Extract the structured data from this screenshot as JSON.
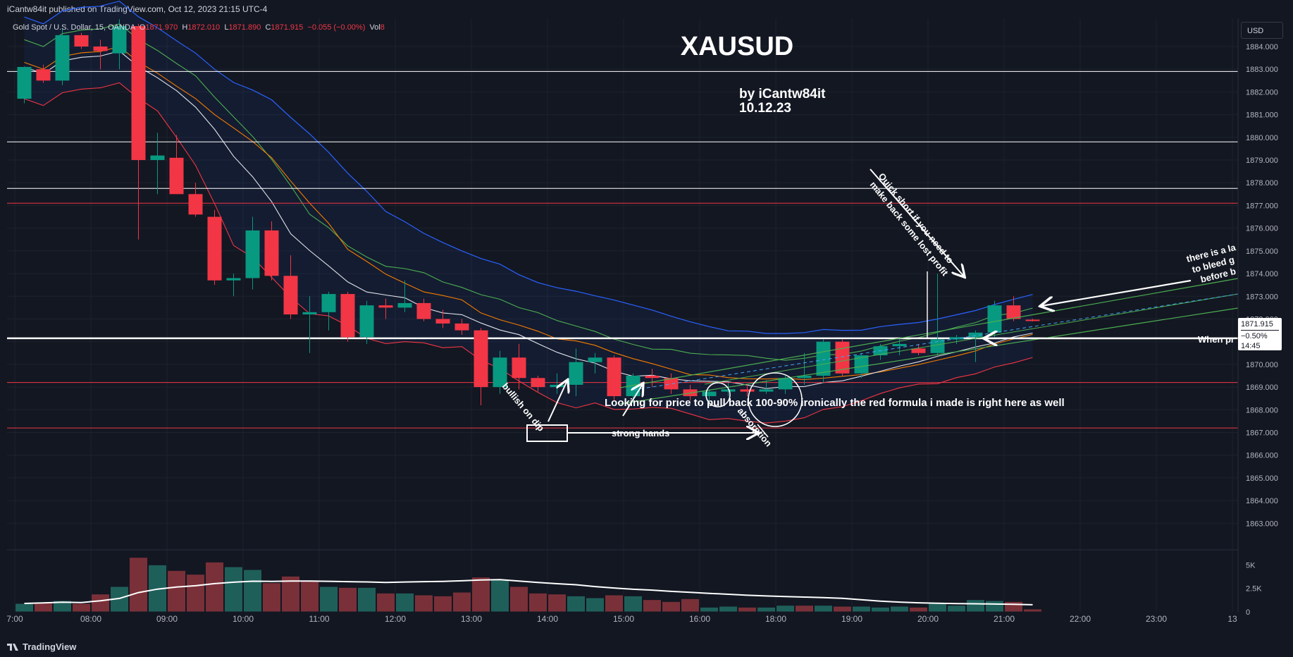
{
  "header": {
    "publish_line": "iCantw84it published on TradingView.com, Oct 12, 2023 21:15 UTC-4"
  },
  "legend": {
    "symbol": "Gold Spot / U.S. Dollar, 15, OANDA",
    "o_label": "O",
    "o_value": "1871.970",
    "h_label": "H",
    "h_value": "1872.010",
    "l_label": "L",
    "l_value": "1871.890",
    "c_label": "C",
    "c_value": "1871.915",
    "change": "−0.055 (−0.00%)",
    "vol_label": "Vol",
    "vol_value": "8"
  },
  "currency_button": "USD",
  "price_tag": {
    "price": "1871.915",
    "pct": "−0.50%",
    "countdown": "14:45"
  },
  "footer": {
    "brand": "TradingView"
  },
  "colors": {
    "background": "#131722",
    "bull": "#089981",
    "bear": "#f23645",
    "bull_volume": "#1f5f5a",
    "bear_volume": "#7a3038",
    "grid": "#1e222d"
  },
  "chart_data": {
    "type": "candlestick",
    "title": "XAUSUD",
    "subtitle": "by iCantw84it",
    "date_text": "10.12.23",
    "y_axis_ticks": [
      "1884.000",
      "1883.000",
      "1882.000",
      "1881.000",
      "1880.000",
      "1879.000",
      "1878.000",
      "1877.000",
      "1876.000",
      "1875.000",
      "1874.000",
      "1873.000",
      "1872.000",
      "1871.000",
      "1870.000",
      "1869.000",
      "1868.000",
      "1867.000",
      "1866.000",
      "1865.000",
      "1864.000",
      "1863.000"
    ],
    "ylim": [
      1862.0,
      1884.3
    ],
    "x_ticks": [
      {
        "label": "7:00",
        "t": -1.0
      },
      {
        "label": "08:00",
        "t": 3.0
      },
      {
        "label": "09:00",
        "t": 7.0
      },
      {
        "label": "10:00",
        "t": 11.0
      },
      {
        "label": "11:00",
        "t": 15.0
      },
      {
        "label": "12:00",
        "t": 19.0
      },
      {
        "label": "13:00",
        "t": 23.0
      },
      {
        "label": "14:00",
        "t": 27.0
      },
      {
        "label": "15:00",
        "t": 31.0
      },
      {
        "label": "16:00",
        "t": 35.0
      },
      {
        "label": "18:00",
        "t": 39.0
      },
      {
        "label": "19:00",
        "t": 43.0
      },
      {
        "label": "20:00",
        "t": 47.0
      },
      {
        "label": "21:00",
        "t": 51.0
      },
      {
        "label": "22:00",
        "t": 55.0
      },
      {
        "label": "23:00",
        "t": 59.0
      },
      {
        "label": "13",
        "t": 63.0
      }
    ],
    "candles": [
      {
        "t": -0.5,
        "o": 1881.7,
        "h": 1883.0,
        "l": 1881.5,
        "c": 1883.1
      },
      {
        "t": 0.5,
        "o": 1883.0,
        "h": 1883.2,
        "l": 1882.4,
        "c": 1882.5
      },
      {
        "t": 1.5,
        "o": 1882.5,
        "h": 1884.8,
        "l": 1882.3,
        "c": 1884.5
      },
      {
        "t": 2.5,
        "o": 1884.5,
        "h": 1884.6,
        "l": 1883.9,
        "c": 1884.0
      },
      {
        "t": 3.5,
        "o": 1884.0,
        "h": 1884.3,
        "l": 1883.0,
        "c": 1883.8
      },
      {
        "t": 4.5,
        "o": 1883.7,
        "h": 1885.2,
        "l": 1883.0,
        "c": 1884.9
      },
      {
        "t": 5.5,
        "o": 1884.9,
        "h": 1885.0,
        "l": 1875.5,
        "c": 1879.0
      },
      {
        "t": 6.5,
        "o": 1879.0,
        "h": 1880.2,
        "l": 1877.5,
        "c": 1879.2
      },
      {
        "t": 7.5,
        "o": 1879.1,
        "h": 1880.1,
        "l": 1877.5,
        "c": 1877.5
      },
      {
        "t": 8.5,
        "o": 1877.5,
        "h": 1878.0,
        "l": 1876.5,
        "c": 1876.6
      },
      {
        "t": 9.5,
        "o": 1876.5,
        "h": 1876.8,
        "l": 1873.5,
        "c": 1873.7
      },
      {
        "t": 10.5,
        "o": 1873.7,
        "h": 1874.0,
        "l": 1873.0,
        "c": 1873.8
      },
      {
        "t": 11.5,
        "o": 1873.8,
        "h": 1876.5,
        "l": 1873.3,
        "c": 1875.9
      },
      {
        "t": 12.5,
        "o": 1875.9,
        "h": 1876.3,
        "l": 1873.7,
        "c": 1873.9
      },
      {
        "t": 13.5,
        "o": 1873.9,
        "h": 1874.8,
        "l": 1872.0,
        "c": 1872.2
      },
      {
        "t": 14.5,
        "o": 1872.2,
        "h": 1873.0,
        "l": 1870.5,
        "c": 1872.3
      },
      {
        "t": 15.5,
        "o": 1872.3,
        "h": 1873.2,
        "l": 1871.5,
        "c": 1873.1
      },
      {
        "t": 16.5,
        "o": 1873.1,
        "h": 1873.2,
        "l": 1871.0,
        "c": 1871.2
      },
      {
        "t": 17.5,
        "o": 1871.2,
        "h": 1872.8,
        "l": 1870.9,
        "c": 1872.6
      },
      {
        "t": 18.5,
        "o": 1872.6,
        "h": 1872.9,
        "l": 1872.0,
        "c": 1872.5
      },
      {
        "t": 19.5,
        "o": 1872.5,
        "h": 1873.7,
        "l": 1872.3,
        "c": 1872.7
      },
      {
        "t": 20.5,
        "o": 1872.7,
        "h": 1872.9,
        "l": 1871.9,
        "c": 1872.0
      },
      {
        "t": 21.5,
        "o": 1872.0,
        "h": 1872.4,
        "l": 1871.6,
        "c": 1871.8
      },
      {
        "t": 22.5,
        "o": 1871.8,
        "h": 1872.0,
        "l": 1871.3,
        "c": 1871.5
      },
      {
        "t": 23.5,
        "o": 1871.5,
        "h": 1871.6,
        "l": 1868.2,
        "c": 1869.0
      },
      {
        "t": 24.5,
        "o": 1869.0,
        "h": 1870.6,
        "l": 1868.7,
        "c": 1870.3
      },
      {
        "t": 25.5,
        "o": 1870.3,
        "h": 1870.9,
        "l": 1868.9,
        "c": 1869.4
      },
      {
        "t": 26.5,
        "o": 1869.4,
        "h": 1869.5,
        "l": 1868.8,
        "c": 1869.0
      },
      {
        "t": 27.5,
        "o": 1869.0,
        "h": 1869.6,
        "l": 1868.7,
        "c": 1869.1
      },
      {
        "t": 28.5,
        "o": 1869.1,
        "h": 1870.7,
        "l": 1868.6,
        "c": 1870.1
      },
      {
        "t": 29.5,
        "o": 1870.1,
        "h": 1870.5,
        "l": 1869.6,
        "c": 1870.3
      },
      {
        "t": 30.5,
        "o": 1870.3,
        "h": 1870.4,
        "l": 1868.4,
        "c": 1868.6
      },
      {
        "t": 31.5,
        "o": 1868.6,
        "h": 1869.6,
        "l": 1868.3,
        "c": 1869.5
      },
      {
        "t": 32.5,
        "o": 1869.5,
        "h": 1869.8,
        "l": 1869.0,
        "c": 1869.4
      },
      {
        "t": 33.5,
        "o": 1869.4,
        "h": 1869.6,
        "l": 1868.7,
        "c": 1868.9
      },
      {
        "t": 34.5,
        "o": 1868.9,
        "h": 1869.1,
        "l": 1868.4,
        "c": 1868.6
      },
      {
        "t": 35.5,
        "o": 1868.6,
        "h": 1868.9,
        "l": 1868.3,
        "c": 1868.8
      },
      {
        "t": 36.5,
        "o": 1868.8,
        "h": 1869.2,
        "l": 1868.6,
        "c": 1868.9
      },
      {
        "t": 37.5,
        "o": 1868.9,
        "h": 1869.1,
        "l": 1868.6,
        "c": 1868.8
      },
      {
        "t": 38.5,
        "o": 1868.8,
        "h": 1869.3,
        "l": 1868.7,
        "c": 1868.9
      },
      {
        "t": 39.5,
        "o": 1868.9,
        "h": 1869.5,
        "l": 1868.7,
        "c": 1869.4
      },
      {
        "t": 40.5,
        "o": 1869.4,
        "h": 1870.5,
        "l": 1869.1,
        "c": 1869.5
      },
      {
        "t": 41.5,
        "o": 1869.5,
        "h": 1871.1,
        "l": 1869.2,
        "c": 1871.0
      },
      {
        "t": 42.5,
        "o": 1871.0,
        "h": 1871.1,
        "l": 1869.5,
        "c": 1869.6
      },
      {
        "t": 43.5,
        "o": 1869.6,
        "h": 1870.5,
        "l": 1869.4,
        "c": 1870.4
      },
      {
        "t": 44.5,
        "o": 1870.4,
        "h": 1870.9,
        "l": 1870.2,
        "c": 1870.8
      },
      {
        "t": 45.5,
        "o": 1870.8,
        "h": 1871.1,
        "l": 1870.4,
        "c": 1870.9
      },
      {
        "t": 46.5,
        "o": 1870.7,
        "h": 1870.9,
        "l": 1870.4,
        "c": 1870.5
      },
      {
        "t": 47.5,
        "o": 1870.5,
        "h": 1874.0,
        "l": 1870.4,
        "c": 1871.1
      },
      {
        "t": 48.5,
        "o": 1871.1,
        "h": 1871.3,
        "l": 1870.9,
        "c": 1871.2
      },
      {
        "t": 49.5,
        "o": 1871.2,
        "h": 1871.5,
        "l": 1870.1,
        "c": 1871.4
      },
      {
        "t": 50.5,
        "o": 1871.4,
        "h": 1872.8,
        "l": 1871.1,
        "c": 1872.6
      },
      {
        "t": 51.5,
        "o": 1872.6,
        "h": 1873.0,
        "l": 1871.9,
        "c": 1872.0
      },
      {
        "t": 52.5,
        "o": 1871.97,
        "h": 1872.01,
        "l": 1871.89,
        "c": 1871.915
      }
    ],
    "volume_ticks": [
      "5K",
      "2.5K",
      "0"
    ],
    "volume_max": 6000,
    "volume": [
      {
        "t": -0.5,
        "v": 900,
        "up": true
      },
      {
        "t": 0.5,
        "v": 1000,
        "up": false
      },
      {
        "t": 1.5,
        "v": 1200,
        "up": true
      },
      {
        "t": 2.5,
        "v": 900,
        "up": false
      },
      {
        "t": 3.5,
        "v": 1900,
        "up": false
      },
      {
        "t": 4.5,
        "v": 2700,
        "up": true
      },
      {
        "t": 5.5,
        "v": 5800,
        "up": false
      },
      {
        "t": 6.5,
        "v": 5000,
        "up": true
      },
      {
        "t": 7.5,
        "v": 4400,
        "up": false
      },
      {
        "t": 8.5,
        "v": 4000,
        "up": false
      },
      {
        "t": 9.5,
        "v": 5300,
        "up": false
      },
      {
        "t": 10.5,
        "v": 4800,
        "up": true
      },
      {
        "t": 11.5,
        "v": 4500,
        "up": true
      },
      {
        "t": 12.5,
        "v": 3100,
        "up": false
      },
      {
        "t": 13.5,
        "v": 3800,
        "up": false
      },
      {
        "t": 14.5,
        "v": 3300,
        "up": false
      },
      {
        "t": 15.5,
        "v": 2700,
        "up": true
      },
      {
        "t": 16.5,
        "v": 2600,
        "up": false
      },
      {
        "t": 17.5,
        "v": 2600,
        "up": true
      },
      {
        "t": 18.5,
        "v": 2000,
        "up": false
      },
      {
        "t": 19.5,
        "v": 2000,
        "up": true
      },
      {
        "t": 20.5,
        "v": 1800,
        "up": false
      },
      {
        "t": 21.5,
        "v": 1700,
        "up": false
      },
      {
        "t": 22.5,
        "v": 2100,
        "up": false
      },
      {
        "t": 23.5,
        "v": 3700,
        "up": false
      },
      {
        "t": 24.5,
        "v": 3400,
        "up": true
      },
      {
        "t": 25.5,
        "v": 2700,
        "up": false
      },
      {
        "t": 26.5,
        "v": 2000,
        "up": false
      },
      {
        "t": 27.5,
        "v": 1900,
        "up": false
      },
      {
        "t": 28.5,
        "v": 1700,
        "up": true
      },
      {
        "t": 29.5,
        "v": 1500,
        "up": true
      },
      {
        "t": 30.5,
        "v": 1800,
        "up": false
      },
      {
        "t": 31.5,
        "v": 1700,
        "up": true
      },
      {
        "t": 32.5,
        "v": 1300,
        "up": false
      },
      {
        "t": 33.5,
        "v": 1100,
        "up": false
      },
      {
        "t": 34.5,
        "v": 1400,
        "up": false
      },
      {
        "t": 35.5,
        "v": 500,
        "up": true
      },
      {
        "t": 36.5,
        "v": 600,
        "up": true
      },
      {
        "t": 37.5,
        "v": 500,
        "up": false
      },
      {
        "t": 38.5,
        "v": 500,
        "up": true
      },
      {
        "t": 39.5,
        "v": 700,
        "up": true
      },
      {
        "t": 40.5,
        "v": 700,
        "up": false
      },
      {
        "t": 41.5,
        "v": 700,
        "up": true
      },
      {
        "t": 42.5,
        "v": 600,
        "up": false
      },
      {
        "t": 43.5,
        "v": 600,
        "up": true
      },
      {
        "t": 44.5,
        "v": 500,
        "up": true
      },
      {
        "t": 45.5,
        "v": 600,
        "up": true
      },
      {
        "t": 46.5,
        "v": 500,
        "up": false
      },
      {
        "t": 47.5,
        "v": 1000,
        "up": true
      },
      {
        "t": 48.5,
        "v": 700,
        "up": true
      },
      {
        "t": 49.5,
        "v": 1300,
        "up": true
      },
      {
        "t": 50.5,
        "v": 1200,
        "up": true
      },
      {
        "t": 51.5,
        "v": 1100,
        "up": false
      },
      {
        "t": 52.5,
        "v": 300,
        "up": false
      }
    ],
    "horizontal_levels": [
      {
        "price": 1882.9,
        "color": "#ffffff"
      },
      {
        "price": 1879.8,
        "color": "#ffffff"
      },
      {
        "price": 1877.75,
        "color": "#ffffff"
      },
      {
        "price": 1877.1,
        "color": "#f23645"
      },
      {
        "price": 1871.15,
        "color": "#ffffff"
      },
      {
        "price": 1869.2,
        "color": "#f23645"
      },
      {
        "price": 1867.2,
        "color": "#f23645"
      }
    ],
    "annotations": {
      "bullish": "bullish on dip",
      "strong_hands": "strong hands",
      "absorption": "absorption",
      "looking": "Looking for price to pull back 100-90%  ironically the red formula i made is right here as well",
      "quick_short_1": "Quick short if you need to",
      "quick_short_2": "make back some lost profit",
      "bleed_1": "there is a la",
      "bleed_2": "to bleed g",
      "bleed_3": "before b",
      "when_price": "When pr"
    }
  }
}
